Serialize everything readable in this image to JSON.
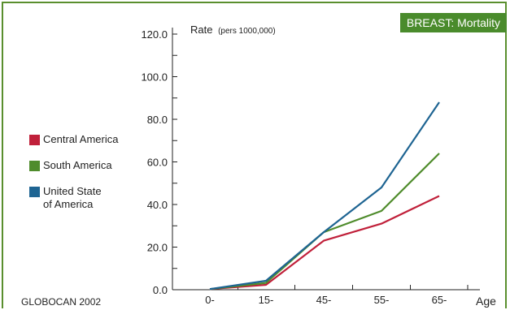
{
  "chart_data": {
    "type": "line",
    "title": "BREAST: Mortality",
    "ylabel_main": "Rate",
    "ylabel_unit": "(pers 1000,000)",
    "xlabel": "Age",
    "categories": [
      "0-",
      "15-",
      "45-",
      "55-",
      "65-"
    ],
    "ylim": [
      0,
      120
    ],
    "yticks": [
      "0.0",
      "20.0",
      "40.0",
      "60.0",
      "80.0",
      "100.0",
      "120.0"
    ],
    "yticks_values": [
      0,
      20,
      40,
      60,
      80,
      100,
      120
    ],
    "series": [
      {
        "name": "Central America",
        "color": "#c0203a",
        "values": [
          0.3,
          2.3,
          23.0,
          31.0,
          44.0
        ]
      },
      {
        "name": "South America",
        "color": "#4f8c2c",
        "values": [
          0.3,
          3.2,
          27.0,
          37.0,
          64.0
        ]
      },
      {
        "name": "United State\nof America",
        "color": "#1e6492",
        "values": [
          0.3,
          4.2,
          27.0,
          48.0,
          88.0
        ]
      }
    ],
    "legend_position": "left",
    "grid": false
  },
  "source": "GLOBOCAN 2002"
}
